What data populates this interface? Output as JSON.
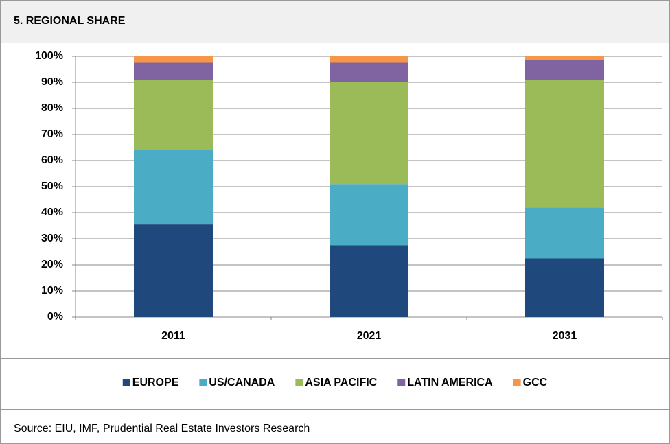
{
  "title": "5. REGIONAL SHARE",
  "source": "Source: EIU, IMF, Prudential Real Estate Investors Research",
  "chart_data": {
    "type": "stacked_bar",
    "categories": [
      "2011",
      "2021",
      "2031"
    ],
    "series": [
      {
        "name": "EUROPE",
        "color": "#1f497d",
        "values": [
          35.5,
          27.5,
          22.5
        ]
      },
      {
        "name": "US/CANADA",
        "color": "#4bacc6",
        "values": [
          28.5,
          23.5,
          19.5
        ]
      },
      {
        "name": "ASIA PACIFIC",
        "color": "#9bbb59",
        "values": [
          27,
          39,
          49
        ]
      },
      {
        "name": "LATIN AMERICA",
        "color": "#8064a2",
        "values": [
          6.5,
          7.5,
          7.5
        ]
      },
      {
        "name": "GCC",
        "color": "#f79646",
        "values": [
          2.5,
          2.5,
          1.5
        ]
      }
    ],
    "ylim": [
      0,
      100
    ],
    "yticks": [
      {
        "value": 0,
        "label": "0%"
      },
      {
        "value": 10,
        "label": "10%"
      },
      {
        "value": 20,
        "label": "20%"
      },
      {
        "value": 30,
        "label": "30%"
      },
      {
        "value": 40,
        "label": "40%"
      },
      {
        "value": 50,
        "label": "50%"
      },
      {
        "value": 60,
        "label": "60%"
      },
      {
        "value": 70,
        "label": "70%"
      },
      {
        "value": 80,
        "label": "80%"
      },
      {
        "value": 90,
        "label": "90%"
      },
      {
        "value": 100,
        "label": "100%"
      }
    ],
    "grid": true,
    "legend": "bottom"
  }
}
